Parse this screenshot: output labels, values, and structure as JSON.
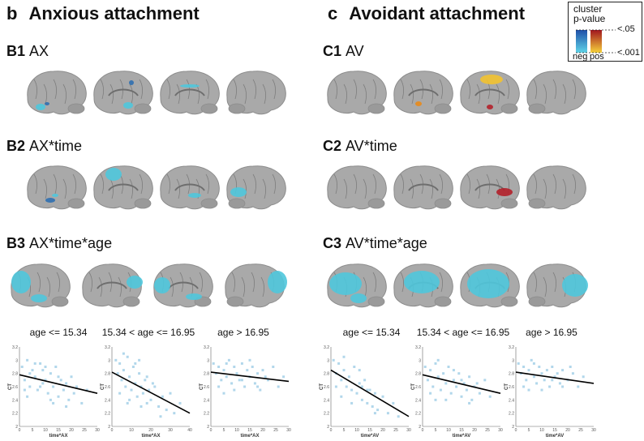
{
  "panels": {
    "anxious": {
      "letter": "b",
      "title": "Anxious attachment"
    },
    "avoidant": {
      "letter": "c",
      "title": "Avoidant attachment"
    }
  },
  "legend": {
    "title_line1": "cluster",
    "title_line2": "p-value",
    "neg": "neg",
    "pos": "pos",
    "top": "<.05",
    "bottom": "<.001"
  },
  "rows": {
    "B1": {
      "id": "B1",
      "label": "AX"
    },
    "B2": {
      "id": "B2",
      "label": "AX*time"
    },
    "B3": {
      "id": "B3",
      "label": "AX*time*age"
    },
    "C1": {
      "id": "C1",
      "label": "AV"
    },
    "C2": {
      "id": "C2",
      "label": "AV*time"
    },
    "C3": {
      "id": "C3",
      "label": "AV*time*age"
    }
  },
  "colors": {
    "brain": "#a9a9a9",
    "brain_dark": "#8c8c8c",
    "cyan": "#4fc7dc",
    "blue": "#2f6fb0",
    "red": "#b3202a",
    "yellow": "#f2c230",
    "orange": "#e88a1a",
    "point": "#9ecde6"
  },
  "chart_data": [
    {
      "type": "scatter",
      "title": "age <= 15.34",
      "xlabel": "time*AX",
      "ylabel": "CT",
      "xlim": [
        0,
        30
      ],
      "ylim": [
        2.0,
        3.2
      ],
      "xticks": [
        "0",
        "5",
        "10",
        "15",
        "20",
        "25",
        "30"
      ],
      "yticks": [
        "2",
        "2.2",
        "2.4",
        "2.6",
        "2.8",
        "3",
        "3.2"
      ],
      "fit": [
        [
          0,
          2.78
        ],
        [
          30,
          2.5
        ]
      ],
      "points": [
        [
          1,
          2.9
        ],
        [
          2,
          2.7
        ],
        [
          3,
          3.0
        ],
        [
          4,
          2.6
        ],
        [
          5,
          2.85
        ],
        [
          6,
          2.75
        ],
        [
          7,
          2.55
        ],
        [
          8,
          2.95
        ],
        [
          9,
          2.65
        ],
        [
          10,
          2.7
        ],
        [
          11,
          2.5
        ],
        [
          12,
          2.8
        ],
        [
          13,
          2.6
        ],
        [
          14,
          2.9
        ],
        [
          15,
          2.45
        ],
        [
          16,
          2.7
        ],
        [
          17,
          2.55
        ],
        [
          18,
          2.65
        ],
        [
          19,
          2.4
        ],
        [
          20,
          2.75
        ],
        [
          21,
          2.5
        ],
        [
          22,
          2.6
        ],
        [
          24,
          2.35
        ],
        [
          26,
          2.55
        ],
        [
          3,
          2.45
        ],
        [
          6,
          2.95
        ],
        [
          9,
          2.85
        ],
        [
          12,
          2.4
        ],
        [
          4,
          2.8
        ],
        [
          8,
          2.6
        ],
        [
          15,
          2.75
        ],
        [
          18,
          2.3
        ],
        [
          2,
          2.55
        ],
        [
          10,
          2.9
        ],
        [
          13,
          2.35
        ]
      ]
    },
    {
      "type": "scatter",
      "title": "15.34 < age <= 16.95",
      "xlabel": "time*AX",
      "ylabel": "CT",
      "xlim": [
        0,
        40
      ],
      "ylim": [
        2.0,
        3.2
      ],
      "xticks": [
        "0",
        "10",
        "20",
        "30",
        "40"
      ],
      "yticks": [
        "2",
        "2.2",
        "2.4",
        "2.6",
        "2.8",
        "3",
        "3.2"
      ],
      "fit": [
        [
          0,
          2.82
        ],
        [
          40,
          2.2
        ]
      ],
      "points": [
        [
          2,
          3.0
        ],
        [
          3,
          2.8
        ],
        [
          4,
          2.95
        ],
        [
          5,
          2.7
        ],
        [
          6,
          2.85
        ],
        [
          7,
          2.6
        ],
        [
          8,
          3.05
        ],
        [
          9,
          2.75
        ],
        [
          10,
          2.55
        ],
        [
          11,
          2.9
        ],
        [
          12,
          2.65
        ],
        [
          13,
          2.45
        ],
        [
          14,
          2.8
        ],
        [
          15,
          2.6
        ],
        [
          16,
          2.5
        ],
        [
          17,
          2.7
        ],
        [
          18,
          2.35
        ],
        [
          19,
          2.55
        ],
        [
          20,
          2.4
        ],
        [
          22,
          2.6
        ],
        [
          24,
          2.3
        ],
        [
          26,
          2.45
        ],
        [
          28,
          2.25
        ],
        [
          30,
          2.5
        ],
        [
          32,
          2.2
        ],
        [
          35,
          2.35
        ],
        [
          4,
          2.5
        ],
        [
          6,
          3.1
        ],
        [
          9,
          2.4
        ],
        [
          12,
          2.95
        ],
        [
          15,
          2.3
        ],
        [
          18,
          2.75
        ],
        [
          21,
          2.65
        ],
        [
          25,
          2.15
        ],
        [
          8,
          2.35
        ],
        [
          14,
          3.0
        ]
      ]
    },
    {
      "type": "scatter",
      "title": "age > 16.95",
      "xlabel": "time*AX",
      "ylabel": "CT",
      "xlim": [
        0,
        30
      ],
      "ylim": [
        2.0,
        3.2
      ],
      "xticks": [
        "0",
        "5",
        "10",
        "15",
        "20",
        "25",
        "30"
      ],
      "yticks": [
        "2",
        "2.2",
        "2.4",
        "2.6",
        "2.8",
        "3",
        "3.2"
      ],
      "fit": [
        [
          0,
          2.82
        ],
        [
          30,
          2.68
        ]
      ],
      "points": [
        [
          1,
          2.95
        ],
        [
          2,
          2.8
        ],
        [
          3,
          2.9
        ],
        [
          4,
          2.7
        ],
        [
          5,
          2.85
        ],
        [
          6,
          2.75
        ],
        [
          7,
          3.0
        ],
        [
          8,
          2.65
        ],
        [
          9,
          2.9
        ],
        [
          10,
          2.8
        ],
        [
          11,
          2.7
        ],
        [
          12,
          2.95
        ],
        [
          13,
          2.6
        ],
        [
          14,
          2.85
        ],
        [
          15,
          2.75
        ],
        [
          16,
          2.9
        ],
        [
          17,
          2.65
        ],
        [
          18,
          2.8
        ],
        [
          19,
          2.55
        ],
        [
          20,
          2.85
        ],
        [
          22,
          2.7
        ],
        [
          24,
          2.9
        ],
        [
          26,
          2.6
        ],
        [
          28,
          2.75
        ],
        [
          3,
          2.6
        ],
        [
          6,
          2.95
        ],
        [
          9,
          2.55
        ],
        [
          12,
          2.7
        ],
        [
          15,
          3.0
        ],
        [
          18,
          2.6
        ],
        [
          21,
          2.75
        ],
        [
          5,
          2.5
        ]
      ]
    },
    {
      "type": "scatter",
      "title": "age <= 15.34",
      "xlabel": "time*AV",
      "ylabel": "CT",
      "xlim": [
        0,
        30
      ],
      "ylim": [
        2.0,
        3.2
      ],
      "xticks": [
        "0",
        "5",
        "10",
        "15",
        "20",
        "25",
        "30"
      ],
      "yticks": [
        "2",
        "2.2",
        "2.4",
        "2.6",
        "2.8",
        "3",
        "3.2"
      ],
      "fit": [
        [
          0,
          2.85
        ],
        [
          30,
          2.15
        ]
      ],
      "points": [
        [
          1,
          3.0
        ],
        [
          2,
          2.8
        ],
        [
          3,
          2.95
        ],
        [
          4,
          2.7
        ],
        [
          5,
          2.85
        ],
        [
          6,
          2.6
        ],
        [
          7,
          2.75
        ],
        [
          8,
          2.55
        ],
        [
          9,
          2.9
        ],
        [
          10,
          2.5
        ],
        [
          11,
          2.65
        ],
        [
          12,
          2.4
        ],
        [
          13,
          2.7
        ],
        [
          14,
          2.35
        ],
        [
          15,
          2.55
        ],
        [
          16,
          2.3
        ],
        [
          17,
          2.5
        ],
        [
          18,
          2.25
        ],
        [
          20,
          2.45
        ],
        [
          22,
          2.2
        ],
        [
          24,
          2.35
        ],
        [
          26,
          2.15
        ],
        [
          2,
          2.6
        ],
        [
          5,
          3.05
        ],
        [
          8,
          2.35
        ],
        [
          11,
          2.85
        ],
        [
          14,
          2.55
        ],
        [
          17,
          2.2
        ],
        [
          4,
          2.45
        ],
        [
          12,
          2.6
        ]
      ]
    },
    {
      "type": "scatter",
      "title": "15.34 < age <= 16.95",
      "xlabel": "time*AV",
      "ylabel": "CT",
      "xlim": [
        0,
        30
      ],
      "ylim": [
        2.0,
        3.2
      ],
      "xticks": [
        "0",
        "5",
        "10",
        "15",
        "20",
        "25",
        "30"
      ],
      "yticks": [
        "2",
        "2.2",
        "2.4",
        "2.6",
        "2.8",
        "3",
        "3.2"
      ],
      "fit": [
        [
          0,
          2.78
        ],
        [
          30,
          2.5
        ]
      ],
      "points": [
        [
          1,
          2.9
        ],
        [
          2,
          2.7
        ],
        [
          3,
          2.85
        ],
        [
          4,
          2.6
        ],
        [
          5,
          2.95
        ],
        [
          6,
          2.75
        ],
        [
          7,
          2.55
        ],
        [
          8,
          2.8
        ],
        [
          9,
          2.65
        ],
        [
          10,
          2.9
        ],
        [
          11,
          2.5
        ],
        [
          12,
          2.7
        ],
        [
          13,
          2.6
        ],
        [
          14,
          2.8
        ],
        [
          15,
          2.45
        ],
        [
          16,
          2.65
        ],
        [
          17,
          2.55
        ],
        [
          18,
          2.75
        ],
        [
          19,
          2.4
        ],
        [
          20,
          2.6
        ],
        [
          22,
          2.5
        ],
        [
          24,
          2.7
        ],
        [
          26,
          2.45
        ],
        [
          3,
          2.5
        ],
        [
          6,
          3.0
        ],
        [
          9,
          2.4
        ],
        [
          12,
          2.85
        ],
        [
          15,
          2.7
        ],
        [
          18,
          2.35
        ],
        [
          21,
          2.65
        ],
        [
          5,
          2.4
        ]
      ]
    },
    {
      "type": "scatter",
      "title": "age > 16.95",
      "xlabel": "time*AV",
      "ylabel": "CT",
      "xlim": [
        0,
        30
      ],
      "ylim": [
        2.0,
        3.2
      ],
      "xticks": [
        "0",
        "5",
        "10",
        "15",
        "20",
        "25",
        "30"
      ],
      "yticks": [
        "2",
        "2.2",
        "2.4",
        "2.6",
        "2.8",
        "3",
        "3.2"
      ],
      "fit": [
        [
          0,
          2.82
        ],
        [
          30,
          2.65
        ]
      ],
      "points": [
        [
          1,
          2.95
        ],
        [
          2,
          2.8
        ],
        [
          3,
          2.9
        ],
        [
          4,
          2.7
        ],
        [
          5,
          2.85
        ],
        [
          6,
          3.0
        ],
        [
          7,
          2.75
        ],
        [
          8,
          2.65
        ],
        [
          9,
          2.9
        ],
        [
          10,
          2.8
        ],
        [
          11,
          2.7
        ],
        [
          12,
          2.85
        ],
        [
          13,
          2.6
        ],
        [
          14,
          2.9
        ],
        [
          15,
          2.75
        ],
        [
          16,
          2.8
        ],
        [
          17,
          2.65
        ],
        [
          18,
          2.85
        ],
        [
          20,
          2.7
        ],
        [
          22,
          2.8
        ],
        [
          24,
          2.6
        ],
        [
          26,
          2.75
        ],
        [
          3,
          2.6
        ],
        [
          7,
          2.95
        ],
        [
          10,
          2.55
        ],
        [
          14,
          2.7
        ],
        [
          18,
          2.6
        ],
        [
          21,
          2.9
        ],
        [
          5,
          2.55
        ]
      ]
    }
  ]
}
